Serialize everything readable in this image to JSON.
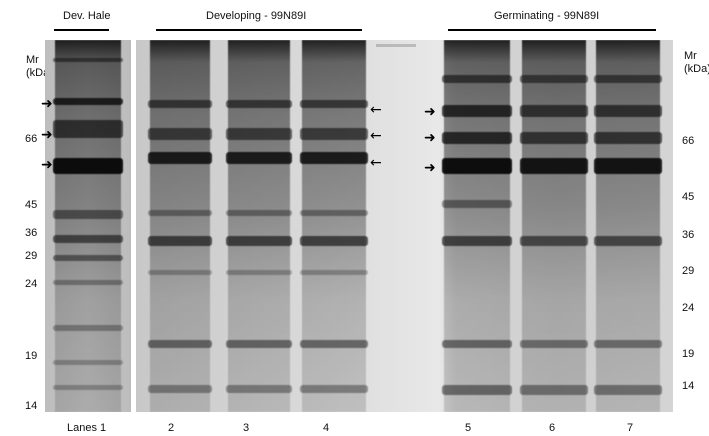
{
  "headers": {
    "dev_hale": "Dev. Hale",
    "developing": "Developing - 99N89I",
    "germinating": "Germinating - 99N89I"
  },
  "mr_axis_left": {
    "title_line1": "Mr",
    "title_line2": "(kDa)",
    "ticks": [
      "66",
      "45",
      "36",
      "29",
      "24",
      "19",
      "14"
    ]
  },
  "mr_axis_right": {
    "title_line1": "Mr",
    "title_line2": "(kDa)",
    "ticks": [
      "66",
      "45",
      "36",
      "29",
      "24",
      "19",
      "14"
    ]
  },
  "lanes": {
    "prefix": "Lanes 1",
    "numbers": [
      "2",
      "3",
      "4",
      "5",
      "6",
      "7"
    ]
  },
  "arrows": {
    "glyph_right": "➜",
    "glyph_left": "←"
  }
}
